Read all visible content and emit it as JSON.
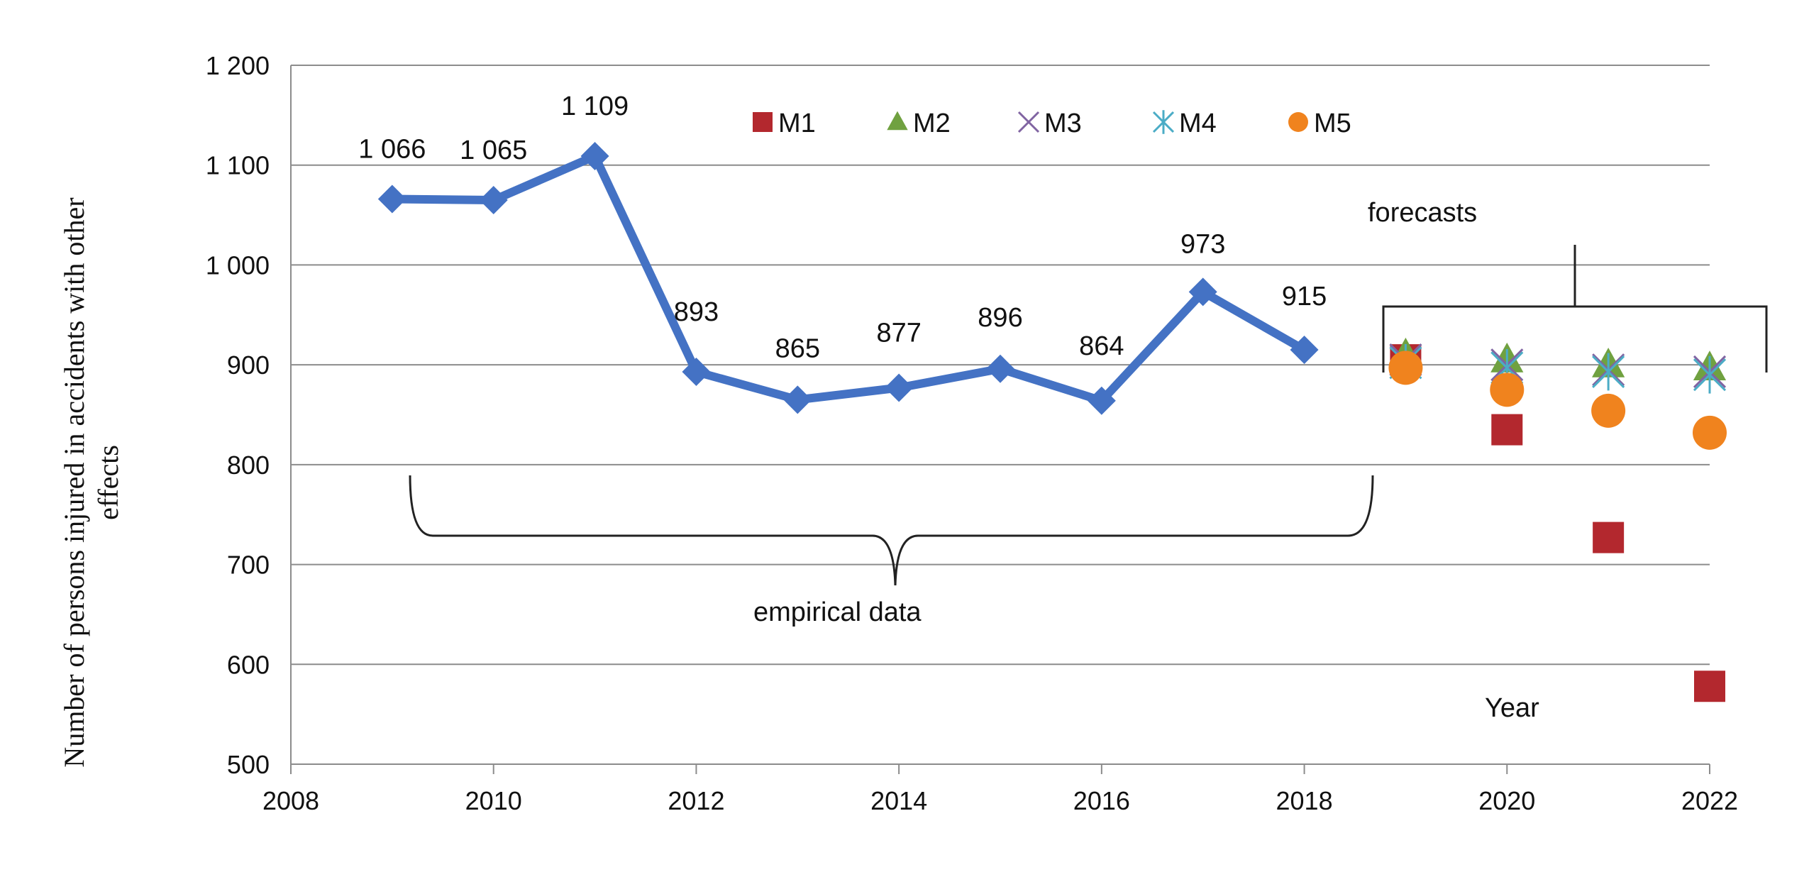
{
  "chart_data": {
    "type": "line",
    "title": "",
    "xlabel": "Year",
    "ylabel_lines": [
      "Number of persons injured in accidents with other",
      "effects"
    ],
    "xlim": [
      2008,
      2022
    ],
    "ylim": [
      500,
      1200
    ],
    "xticks": [
      2008,
      2010,
      2012,
      2014,
      2016,
      2018,
      2020,
      2022
    ],
    "yticks": [
      500,
      600,
      700,
      800,
      900,
      1000,
      1100,
      1200
    ],
    "ytick_labels": [
      "500",
      "600",
      "700",
      "800",
      "900",
      "1 000",
      "1 100",
      "1 200"
    ],
    "grid": true,
    "empirical": {
      "x": [
        2009,
        2010,
        2011,
        2012,
        2013,
        2014,
        2015,
        2016,
        2017,
        2018
      ],
      "y": [
        1066,
        1065,
        1109,
        893,
        865,
        877,
        896,
        864,
        973,
        915
      ],
      "labels": [
        "1 066",
        "1 065",
        "1 109",
        "893",
        "865",
        "877",
        "896",
        "864",
        "973",
        "915"
      ],
      "color": "#4472C4"
    },
    "forecasts": [
      {
        "name": "M1",
        "marker": "square",
        "color": "#B3282E",
        "x": [
          2019,
          2020,
          2021,
          2022
        ],
        "y": [
          905,
          835,
          727,
          578
        ]
      },
      {
        "name": "M2",
        "marker": "triangle",
        "color": "#70A140",
        "x": [
          2019,
          2020,
          2021,
          2022
        ],
        "y": [
          910,
          905,
          900,
          897
        ]
      },
      {
        "name": "M3",
        "marker": "x",
        "color": "#8064A2",
        "x": [
          2019,
          2020,
          2021,
          2022
        ],
        "y": [
          905,
          900,
          895,
          893
        ]
      },
      {
        "name": "M4",
        "marker": "asterisk",
        "color": "#4BACC6",
        "x": [
          2019,
          2020,
          2021,
          2022
        ],
        "y": [
          902,
          897,
          893,
          890
        ]
      },
      {
        "name": "M5",
        "marker": "circle",
        "color": "#F0831E",
        "x": [
          2019,
          2020,
          2021,
          2022
        ],
        "y": [
          897,
          875,
          854,
          832
        ]
      }
    ],
    "legend": {
      "position": "top-center"
    },
    "annotations": {
      "forecasts_label": "forecasts",
      "empirical_label": "empirical data",
      "year_label": "Year"
    }
  }
}
